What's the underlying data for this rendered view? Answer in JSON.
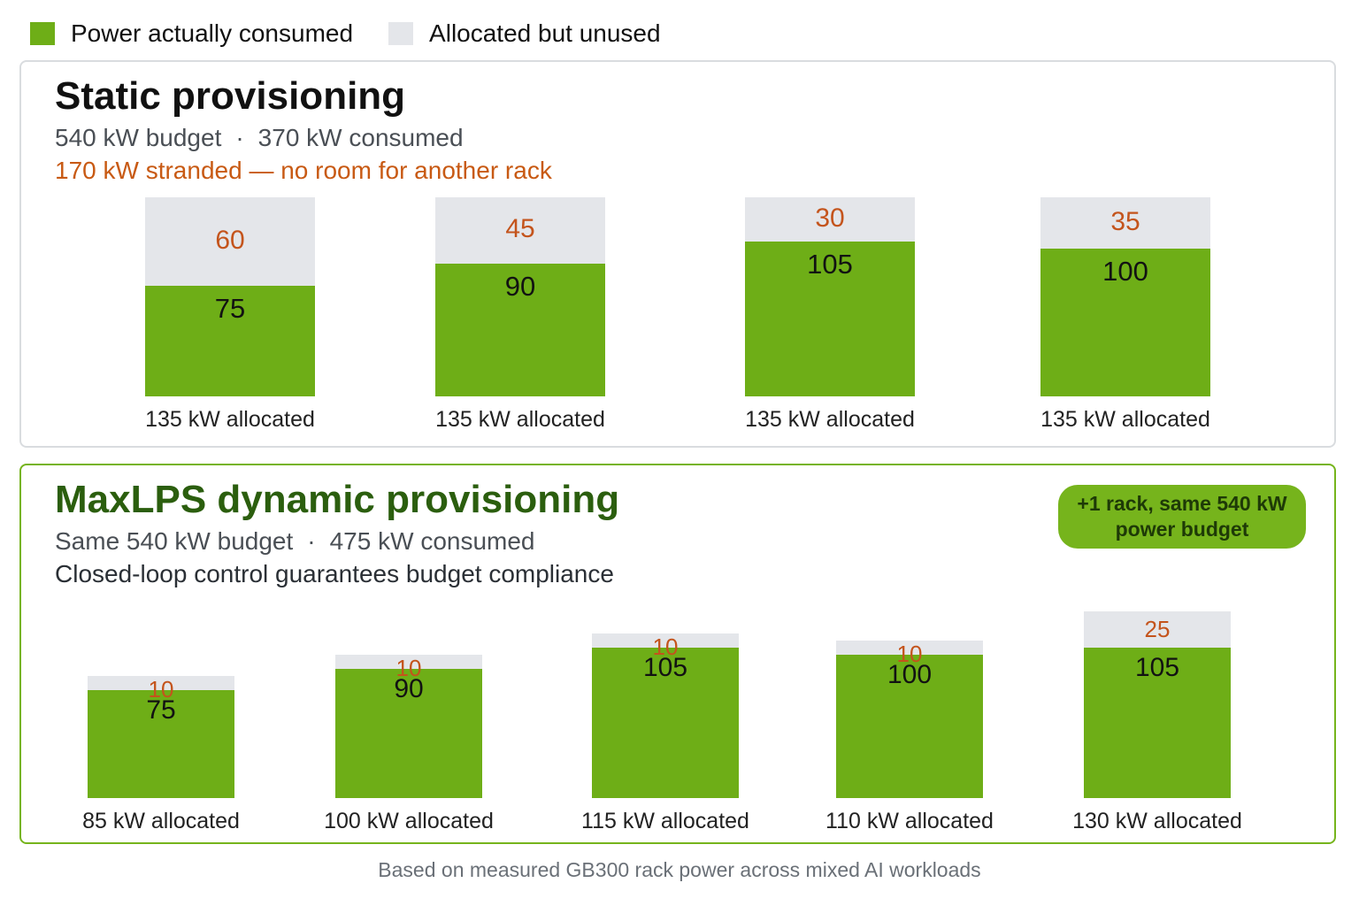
{
  "legend": [
    {
      "label": "Power actually consumed",
      "color": "#6eae17"
    },
    {
      "label": "Allocated but unused",
      "color": "#e4e6ea"
    }
  ],
  "static_panel": {
    "title": "Static provisioning",
    "budget": "540 kW budget",
    "separator": "·",
    "consumed": "370 kW consumed",
    "note": "170 kW stranded — no room for another rack"
  },
  "dynamic_panel": {
    "title": "MaxLPS dynamic provisioning",
    "budget": "Same 540 kW budget",
    "separator": "·",
    "consumed": "475 kW consumed",
    "note": "Closed-loop control guarantees budget compliance",
    "badge": "+1 rack, same 540 kW power budget"
  },
  "footer": "Based on measured GB300 rack power across mixed AI workloads",
  "chart_data": [
    {
      "type": "bar",
      "stacked": true,
      "title": "Static provisioning",
      "categories": [
        "135 kW allocated",
        "135 kW allocated",
        "135 kW allocated",
        "135 kW allocated"
      ],
      "series": [
        {
          "name": "Power actually consumed",
          "values": [
            75,
            90,
            105,
            100
          ]
        },
        {
          "name": "Allocated but unused",
          "values": [
            60,
            45,
            30,
            35
          ]
        }
      ]
    },
    {
      "type": "bar",
      "stacked": true,
      "title": "MaxLPS dynamic provisioning",
      "categories": [
        "85 kW allocated",
        "100 kW allocated",
        "115 kW allocated",
        "110 kW allocated",
        "130 kW allocated"
      ],
      "series": [
        {
          "name": "Power actually consumed",
          "values": [
            75,
            90,
            105,
            100,
            105
          ]
        },
        {
          "name": "Allocated but unused",
          "values": [
            10,
            10,
            10,
            10,
            25
          ]
        }
      ]
    }
  ]
}
